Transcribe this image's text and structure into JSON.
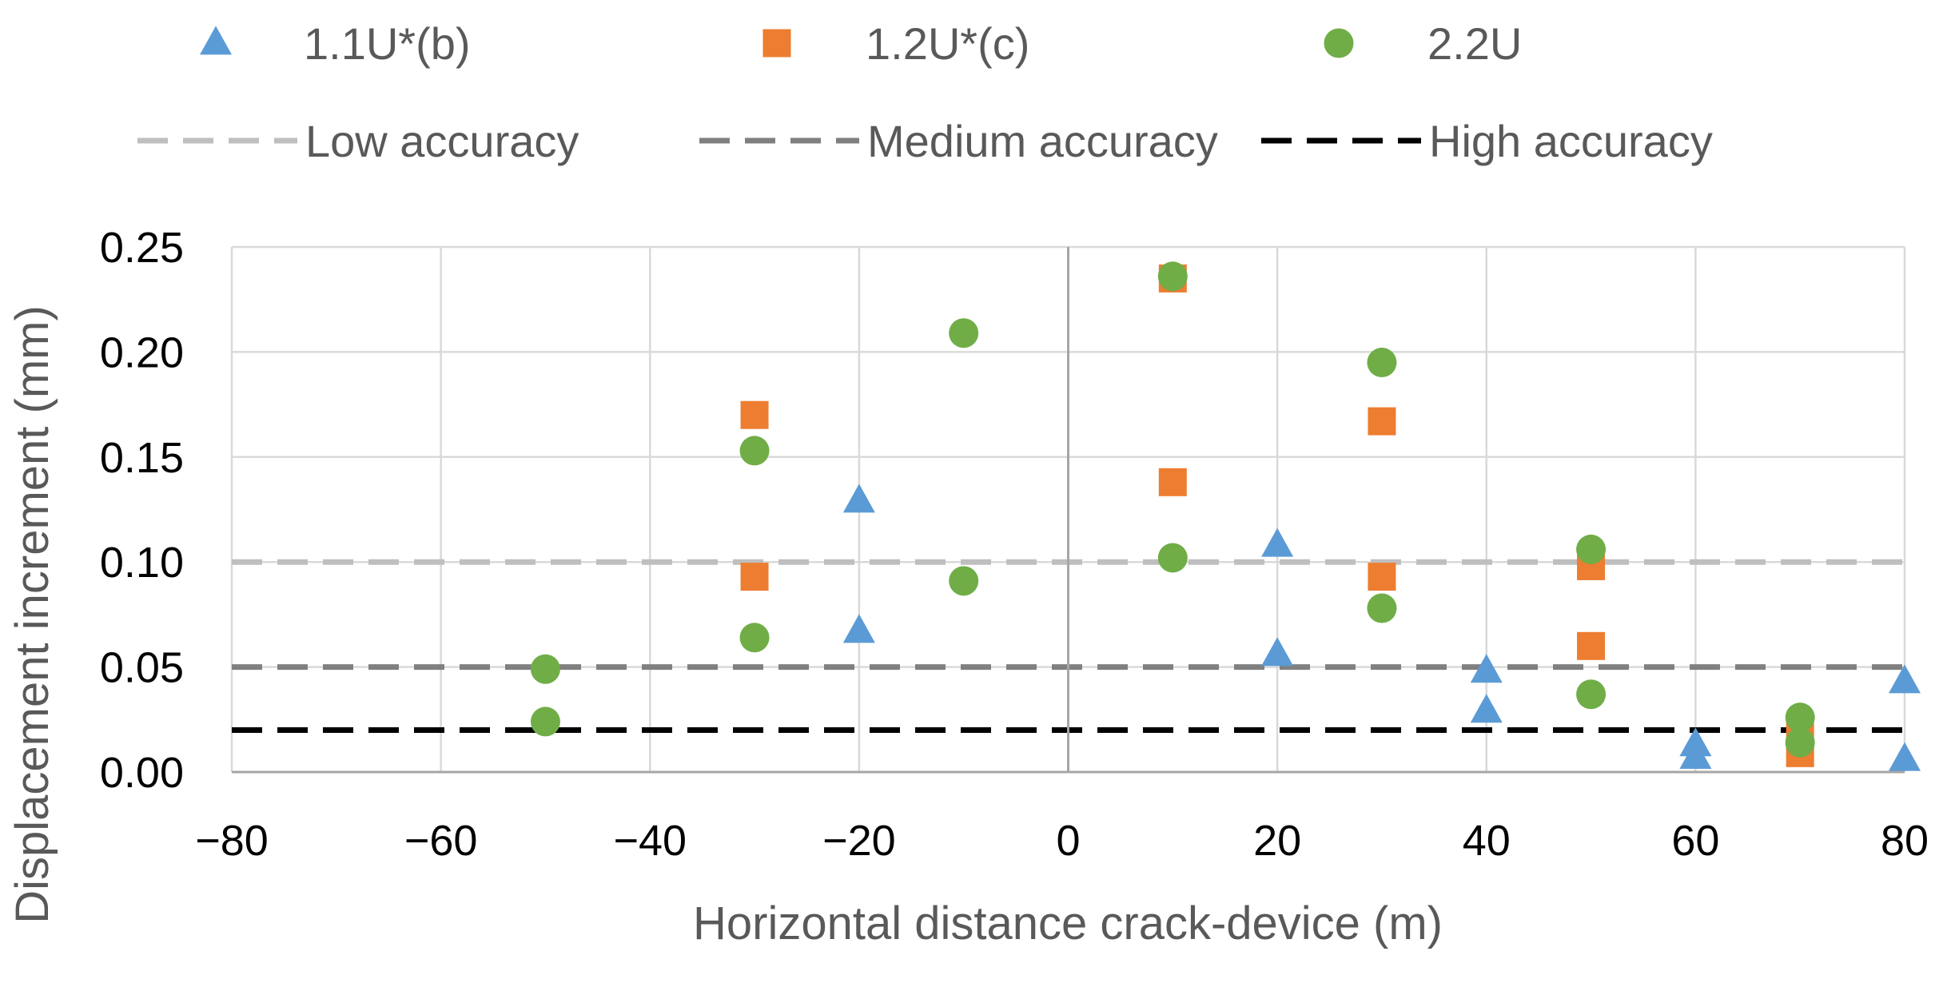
{
  "chart_data": {
    "type": "scatter",
    "xlabel": "Horizontal distance crack-device (m)",
    "ylabel": "Displacement increment (mm)",
    "xlim": [
      -80,
      80
    ],
    "ylim": [
      0,
      0.25
    ],
    "x_ticks": [
      -80,
      -60,
      -40,
      -20,
      0,
      20,
      40,
      60,
      80
    ],
    "x_tick_labels": [
      "−80",
      "−60",
      "−40",
      "−20",
      "0",
      "20",
      "40",
      "60",
      "80"
    ],
    "y_ticks": [
      0,
      0.05,
      0.1,
      0.15,
      0.2,
      0.25
    ],
    "y_tick_labels": [
      "0.00",
      "0.05",
      "0.10",
      "0.15",
      "0.20",
      "0.25"
    ],
    "grid": true,
    "legend_position": "top",
    "series": [
      {
        "name": "1.1U*(b)",
        "marker": "triangle",
        "color": "#5B9BD5",
        "points": [
          [
            -20,
            0.129
          ],
          [
            -20,
            0.067
          ],
          [
            20,
            0.108
          ],
          [
            20,
            0.056
          ],
          [
            40,
            0.048
          ],
          [
            40,
            0.029
          ],
          [
            60,
            0.013
          ],
          [
            60,
            0.007
          ],
          [
            80,
            0.043
          ],
          [
            80,
            0.006
          ]
        ]
      },
      {
        "name": "1.2U*(c)",
        "marker": "square",
        "color": "#ED7D31",
        "points": [
          [
            -30,
            0.17
          ],
          [
            -30,
            0.093
          ],
          [
            10,
            0.235
          ],
          [
            10,
            0.138
          ],
          [
            30,
            0.167
          ],
          [
            30,
            0.093
          ],
          [
            50,
            0.098
          ],
          [
            50,
            0.06
          ],
          [
            70,
            0.017
          ],
          [
            70,
            0.009
          ]
        ]
      },
      {
        "name": "2.2U",
        "marker": "circle",
        "color": "#70AD47",
        "points": [
          [
            -50,
            0.049
          ],
          [
            -50,
            0.024
          ],
          [
            -30,
            0.153
          ],
          [
            -30,
            0.064
          ],
          [
            -10,
            0.209
          ],
          [
            -10,
            0.091
          ],
          [
            10,
            0.236
          ],
          [
            10,
            0.102
          ],
          [
            30,
            0.195
          ],
          [
            30,
            0.078
          ],
          [
            50,
            0.106
          ],
          [
            50,
            0.037
          ],
          [
            70,
            0.026
          ],
          [
            70,
            0.014
          ]
        ]
      }
    ],
    "reference_lines": [
      {
        "name": "Low accuracy",
        "y": 0.1,
        "color": "#BFBFBF",
        "style": "dashed"
      },
      {
        "name": "Medium accuracy",
        "y": 0.05,
        "color": "#808080",
        "style": "dashed"
      },
      {
        "name": "High accuracy",
        "y": 0.02,
        "color": "#000000",
        "style": "dashed"
      }
    ]
  }
}
